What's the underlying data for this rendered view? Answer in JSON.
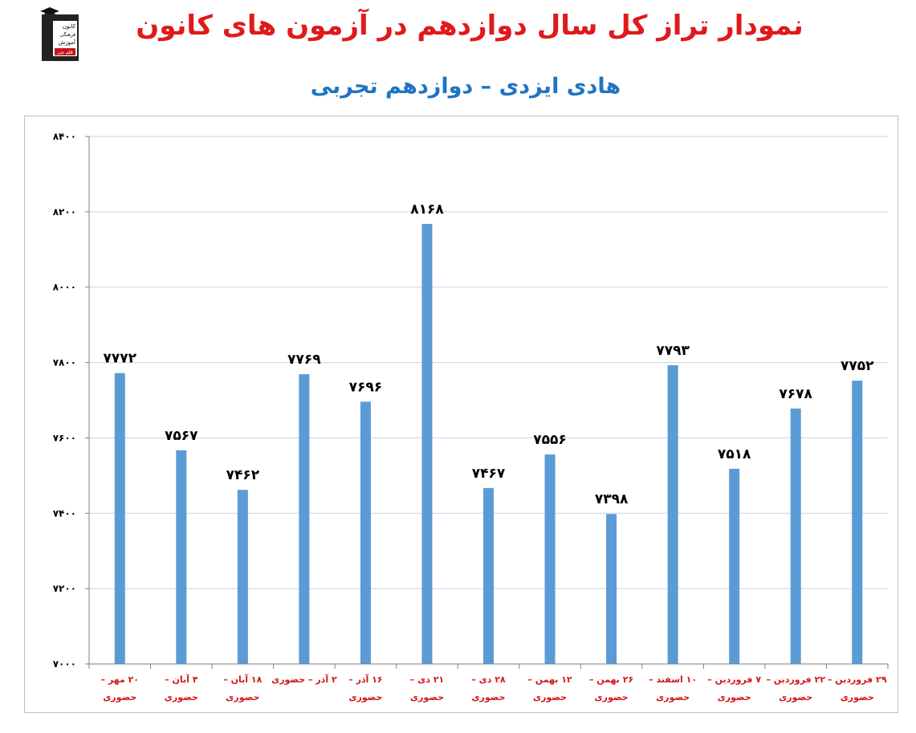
{
  "header": {
    "logo_text": [
      "کانون",
      "فرهنگی",
      "آموزش",
      "قلم چی"
    ],
    "title": "نمودار تراز کل سال دوازدهم در آزمون های کانون",
    "subtitle": "هادی ایزدی – دوازدهم تجربی"
  },
  "colors": {
    "bar": "#5b9bd5",
    "title": "#e0191b",
    "subtitle": "#1f74c4",
    "category": "#d0191b",
    "grid": "#c9d3e0"
  },
  "chart_data": {
    "type": "bar",
    "ylim": [
      7000,
      8400
    ],
    "yticks": [
      7000,
      7200,
      7400,
      7600,
      7800,
      8000,
      8200,
      8400
    ],
    "ytick_labels": [
      "۷۰۰۰",
      "۷۲۰۰",
      "۷۴۰۰",
      "۷۶۰۰",
      "۷۸۰۰",
      "۸۰۰۰",
      "۸۲۰۰",
      "۸۴۰۰"
    ],
    "grid": true,
    "categories": [
      [
        "۲۰ مهر –",
        "حضوری"
      ],
      [
        "۴ آبان –",
        "حضوری"
      ],
      [
        "۱۸ آبان –",
        "حضوری"
      ],
      [
        "۲ آذر – حضوری"
      ],
      [
        "۱۶ آذر –",
        "حضوری"
      ],
      [
        "۲۱ دی –",
        "حضوری"
      ],
      [
        "۲۸ دی –",
        "حضوری"
      ],
      [
        "۱۲ بهمن –",
        "حضوری"
      ],
      [
        "۲۶ بهمن –",
        "حضوری"
      ],
      [
        "۱۰ اسفند –",
        "حضوری"
      ],
      [
        "۷ فروردین –",
        "حضوری"
      ],
      [
        "۲۲ فروردین –",
        "حضوری"
      ],
      [
        "۲۹ فروردین –",
        "حضوری"
      ]
    ],
    "values": [
      7772,
      7567,
      7462,
      7769,
      7696,
      8168,
      7467,
      7556,
      7398,
      7793,
      7518,
      7678,
      7752
    ],
    "value_labels": [
      "۷۷۷۲",
      "۷۵۶۷",
      "۷۴۶۲",
      "۷۷۶۹",
      "۷۶۹۶",
      "۸۱۶۸",
      "۷۴۶۷",
      "۷۵۵۶",
      "۷۳۹۸",
      "۷۷۹۳",
      "۷۵۱۸",
      "۷۶۷۸",
      "۷۷۵۲"
    ]
  }
}
